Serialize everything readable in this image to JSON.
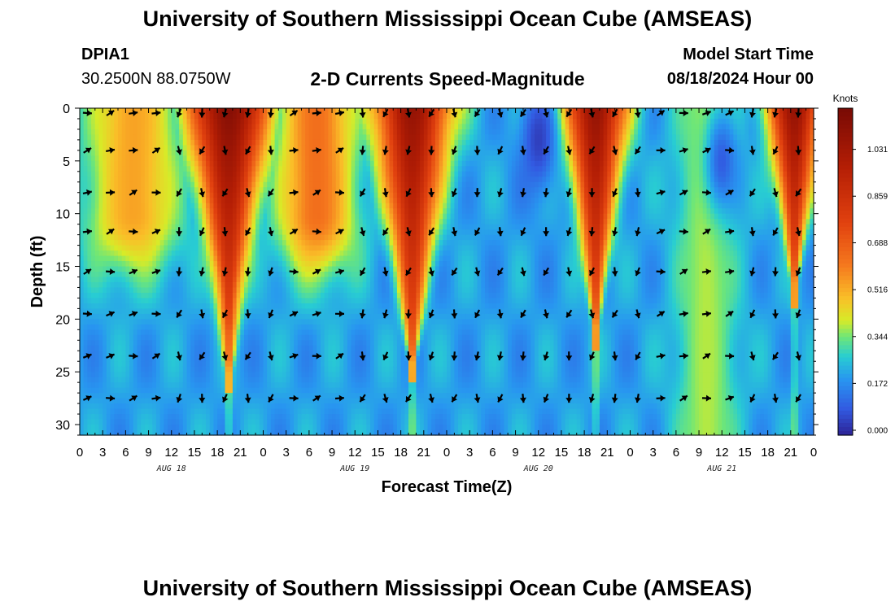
{
  "header": {
    "title": "University of Southern Mississippi Ocean Cube (AMSEAS)",
    "station_id": "DPIA1",
    "coordinates": "30.2500N  88.0750W",
    "subtitle": "2-D Currents Speed-Magnitude",
    "model_start_label": "Model Start Time",
    "model_start_value": "08/18/2024 Hour 00"
  },
  "footer": {
    "title": "University of Southern Mississippi Ocean Cube (AMSEAS)"
  },
  "chart_data": {
    "type": "heatmap",
    "title": "2-D Currents Speed-Magnitude",
    "xlabel": "Forecast Time(Z)",
    "ylabel": "Depth (ft)",
    "xlim": [
      0,
      96
    ],
    "ylim": [
      31,
      0
    ],
    "x_tick_labels": [
      "0",
      "3",
      "6",
      "9",
      "12",
      "15",
      "18",
      "21",
      "0",
      "3",
      "6",
      "9",
      "12",
      "15",
      "18",
      "21",
      "0",
      "3",
      "6",
      "9",
      "12",
      "15",
      "18",
      "21",
      "0",
      "3",
      "6",
      "9",
      "12",
      "15",
      "18",
      "21",
      "0"
    ],
    "y_ticks": [
      0,
      5,
      10,
      15,
      20,
      25,
      30
    ],
    "date_labels": [
      {
        "label": "AUG 18",
        "hour": 12
      },
      {
        "label": "AUG 19",
        "hour": 36
      },
      {
        "label": "AUG 20",
        "hour": 60
      },
      {
        "label": "AUG 21",
        "hour": 84
      }
    ],
    "colorbar": {
      "label": "Knots",
      "ticks": [
        0.0,
        0.172,
        0.344,
        0.516,
        0.688,
        0.859,
        1.031
      ],
      "tick_labels": [
        "0.000",
        "0.172",
        "0.344",
        "0.516",
        "0.688",
        "0.859",
        "1.031"
      ],
      "range": [
        0,
        1.2
      ]
    },
    "vector_depths": [
      0,
      4,
      8,
      11.7,
      15.5,
      19.5,
      23.5,
      27.5
    ],
    "speed_bands": [
      {
        "peak_hour": 19.5,
        "half_width_top": 5.5,
        "bottom_depth": 22,
        "max_speed": 1.15,
        "direction": "down"
      },
      {
        "peak_hour": 19.5,
        "half_width_top": 5,
        "bottom_depth": 25,
        "max_speed": 1.0,
        "direction": "down"
      },
      {
        "peak_hour": 43.5,
        "half_width_top": 5,
        "bottom_depth": 24,
        "max_speed": 1.1,
        "direction": "down"
      },
      {
        "peak_hour": 67.5,
        "half_width_top": 4,
        "bottom_depth": 21,
        "max_speed": 1.1,
        "direction": "down"
      },
      {
        "peak_hour": 93.5,
        "half_width_top": 3.5,
        "bottom_depth": 17,
        "max_speed": 1.1,
        "direction": "down"
      }
    ],
    "flood_bands": [
      {
        "peak_hour": 7,
        "half_width": 6,
        "bottom_depth": 10,
        "max_speed": 0.55,
        "direction": "up"
      },
      {
        "peak_hour": 31,
        "half_width": 5,
        "bottom_depth": 10,
        "max_speed": 0.65,
        "direction": "up"
      },
      {
        "peak_hour": 82,
        "half_width": 4,
        "bottom_depth": 31,
        "max_speed": 0.4,
        "direction": "up"
      }
    ],
    "calm_zones": [
      {
        "hour": 60,
        "depth": 3,
        "speed": 0.05
      },
      {
        "hour": 84,
        "depth": 5,
        "speed": 0.1
      }
    ]
  }
}
